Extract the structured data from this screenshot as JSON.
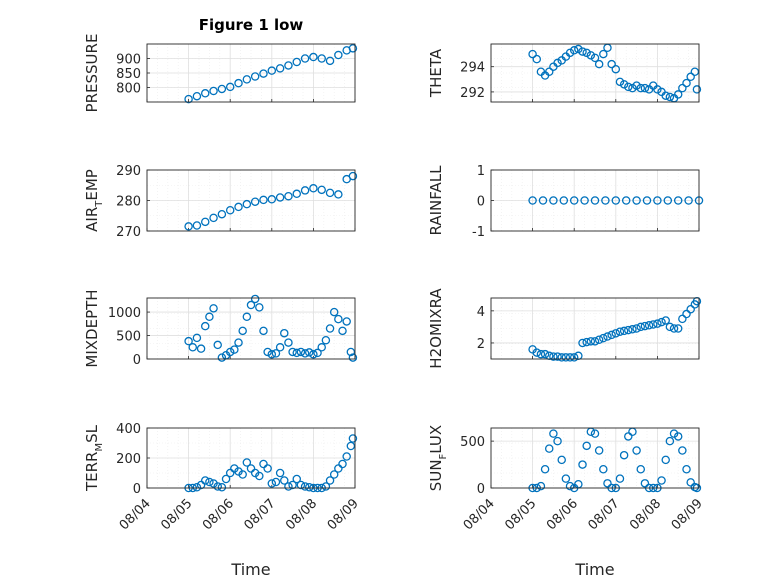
{
  "figure": {
    "title": "Figure 1 low",
    "xlabel": "Time",
    "x_tick_labels": [
      "08/04",
      "08/05",
      "08/06",
      "08/07",
      "08/08",
      "08/09"
    ],
    "colors": {
      "marker": "#0072bd",
      "axis": "#262626",
      "grid": "#dfdfdf",
      "minor_grid": "#ececec"
    }
  },
  "chart_data": [
    {
      "type": "scatter",
      "ylabel": {
        "main": "PRESSURE",
        "sub": ""
      },
      "xlim": [
        0,
        5
      ],
      "ylim": [
        750,
        950
      ],
      "yticks": [
        800,
        850,
        900
      ],
      "grid": true,
      "series": [
        {
          "x": [
            1.0,
            1.2,
            1.4,
            1.6,
            1.8,
            2.0,
            2.2,
            2.4,
            2.6,
            2.8,
            3.0,
            3.2,
            3.4,
            3.6,
            3.8,
            4.0,
            4.2,
            4.4,
            4.6,
            4.8,
            4.95
          ],
          "y": [
            760,
            770,
            780,
            788,
            795,
            802,
            815,
            828,
            838,
            848,
            858,
            866,
            876,
            888,
            900,
            905,
            900,
            892,
            912,
            928,
            935
          ]
        }
      ]
    },
    {
      "type": "scatter",
      "ylabel": {
        "main": "THETA",
        "sub": ""
      },
      "xlim": [
        0,
        5
      ],
      "ylim": [
        291.2,
        295.8
      ],
      "yticks": [
        292,
        294
      ],
      "grid": true,
      "series": [
        {
          "x": [
            1.0,
            1.1,
            1.2,
            1.3,
            1.4,
            1.5,
            1.6,
            1.7,
            1.8,
            1.9,
            2.0,
            2.1,
            2.2,
            2.3,
            2.4,
            2.5,
            2.6,
            2.7,
            2.8,
            2.9,
            3.0,
            3.1,
            3.2,
            3.3,
            3.4,
            3.5,
            3.6,
            3.7,
            3.8,
            3.9,
            4.0,
            4.1,
            4.2,
            4.3,
            4.4,
            4.5,
            4.6,
            4.7,
            4.8,
            4.9,
            4.95
          ],
          "y": [
            295.0,
            294.6,
            293.6,
            293.3,
            293.6,
            294.0,
            294.3,
            294.5,
            294.8,
            295.1,
            295.3,
            295.4,
            295.2,
            295.1,
            294.9,
            294.7,
            294.2,
            295.0,
            295.5,
            294.2,
            293.8,
            292.8,
            292.6,
            292.4,
            292.3,
            292.5,
            292.3,
            292.3,
            292.2,
            292.5,
            292.2,
            292.0,
            291.7,
            291.6,
            291.5,
            291.8,
            292.3,
            292.7,
            293.2,
            293.6,
            292.2
          ]
        }
      ]
    },
    {
      "type": "scatter",
      "ylabel": {
        "main": "AIR",
        "sub": "T",
        "rest": "EMP"
      },
      "xlim": [
        0,
        5
      ],
      "ylim": [
        270,
        290
      ],
      "yticks": [
        270,
        280,
        290
      ],
      "grid": true,
      "series": [
        {
          "x": [
            1.0,
            1.2,
            1.4,
            1.6,
            1.8,
            2.0,
            2.2,
            2.4,
            2.6,
            2.8,
            3.0,
            3.2,
            3.4,
            3.6,
            3.8,
            4.0,
            4.2,
            4.4,
            4.6,
            4.8,
            4.95
          ],
          "y": [
            271.5,
            271.8,
            273.0,
            274.3,
            275.5,
            276.8,
            277.9,
            278.8,
            279.6,
            280.2,
            280.4,
            281.0,
            281.4,
            282.2,
            283.3,
            284.0,
            283.5,
            282.5,
            282.0,
            287.0,
            288.0
          ]
        }
      ]
    },
    {
      "type": "scatter",
      "ylabel": {
        "main": "RAINFALL",
        "sub": ""
      },
      "xlim": [
        0,
        5
      ],
      "ylim": [
        -1,
        1
      ],
      "yticks": [
        -1,
        0,
        1
      ],
      "grid": true,
      "series": [
        {
          "x": [
            1.0,
            1.25,
            1.5,
            1.75,
            2.0,
            2.25,
            2.5,
            2.75,
            3.0,
            3.25,
            3.5,
            3.75,
            4.0,
            4.25,
            4.5,
            4.75,
            5.0
          ],
          "y": [
            0,
            0,
            0,
            0,
            0,
            0,
            0,
            0,
            0,
            0,
            0,
            0,
            0,
            0,
            0,
            0,
            0
          ]
        }
      ]
    },
    {
      "type": "scatter",
      "ylabel": {
        "main": "MIXDEPTH",
        "sub": ""
      },
      "xlim": [
        0,
        5
      ],
      "ylim": [
        0,
        1300
      ],
      "yticks": [
        0,
        500,
        1000
      ],
      "grid": true,
      "series": [
        {
          "x": [
            1.0,
            1.1,
            1.2,
            1.3,
            1.4,
            1.5,
            1.6,
            1.7,
            1.8,
            1.9,
            2.0,
            2.1,
            2.2,
            2.3,
            2.4,
            2.5,
            2.6,
            2.7,
            2.8,
            2.9,
            3.0,
            3.1,
            3.2,
            3.3,
            3.4,
            3.5,
            3.6,
            3.7,
            3.8,
            3.9,
            4.0,
            4.1,
            4.2,
            4.3,
            4.4,
            4.5,
            4.6,
            4.7,
            4.8,
            4.9,
            4.95
          ],
          "y": [
            380,
            250,
            450,
            220,
            700,
            900,
            1080,
            300,
            30,
            80,
            150,
            200,
            350,
            600,
            900,
            1150,
            1280,
            1100,
            600,
            150,
            100,
            120,
            250,
            550,
            350,
            150,
            130,
            150,
            120,
            140,
            100,
            130,
            250,
            400,
            650,
            1000,
            850,
            600,
            800,
            150,
            30
          ]
        }
      ]
    },
    {
      "type": "scatter",
      "ylabel": {
        "main": "H2OMIXRA",
        "sub": ""
      },
      "xlim": [
        0,
        5
      ],
      "ylim": [
        1,
        4.8
      ],
      "yticks": [
        2,
        4
      ],
      "grid": true,
      "series": [
        {
          "x": [
            1.0,
            1.1,
            1.2,
            1.3,
            1.4,
            1.5,
            1.6,
            1.7,
            1.8,
            1.9,
            2.0,
            2.1,
            2.2,
            2.3,
            2.4,
            2.5,
            2.6,
            2.7,
            2.8,
            2.9,
            3.0,
            3.1,
            3.2,
            3.3,
            3.4,
            3.5,
            3.6,
            3.7,
            3.8,
            3.9,
            4.0,
            4.1,
            4.2,
            4.3,
            4.4,
            4.5,
            4.6,
            4.7,
            4.8,
            4.9,
            4.95
          ],
          "y": [
            1.6,
            1.4,
            1.3,
            1.3,
            1.2,
            1.15,
            1.15,
            1.1,
            1.1,
            1.1,
            1.1,
            1.2,
            2.0,
            2.05,
            2.1,
            2.1,
            2.2,
            2.3,
            2.4,
            2.5,
            2.6,
            2.7,
            2.75,
            2.8,
            2.85,
            2.9,
            3.0,
            3.05,
            3.1,
            3.15,
            3.2,
            3.3,
            3.4,
            3.0,
            2.9,
            2.9,
            3.5,
            3.8,
            4.1,
            4.4,
            4.6
          ]
        }
      ]
    },
    {
      "type": "scatter",
      "ylabel": {
        "main": "TERR",
        "sub": "M",
        "rest": "SL"
      },
      "xlim": [
        0,
        5
      ],
      "ylim": [
        0,
        400
      ],
      "yticks": [
        0,
        200,
        400
      ],
      "grid": true,
      "series": [
        {
          "x": [
            1.0,
            1.1,
            1.2,
            1.3,
            1.4,
            1.5,
            1.6,
            1.7,
            1.8,
            1.9,
            2.0,
            2.1,
            2.2,
            2.3,
            2.4,
            2.5,
            2.6,
            2.7,
            2.8,
            2.9,
            3.0,
            3.1,
            3.2,
            3.3,
            3.4,
            3.5,
            3.6,
            3.7,
            3.8,
            3.9,
            4.0,
            4.1,
            4.2,
            4.3,
            4.4,
            4.5,
            4.6,
            4.7,
            4.8,
            4.9,
            4.95
          ],
          "y": [
            0,
            0,
            5,
            20,
            50,
            40,
            30,
            10,
            5,
            60,
            100,
            130,
            110,
            90,
            170,
            130,
            100,
            80,
            160,
            130,
            30,
            40,
            100,
            50,
            10,
            20,
            60,
            20,
            10,
            5,
            0,
            0,
            0,
            10,
            50,
            90,
            130,
            160,
            210,
            280,
            330
          ]
        }
      ]
    },
    {
      "type": "scatter",
      "ylabel": {
        "main": "SUN",
        "sub": "F",
        "rest": "LUX"
      },
      "xlim": [
        0,
        5
      ],
      "ylim": [
        0,
        640
      ],
      "yticks": [
        0,
        500
      ],
      "grid": true,
      "series": [
        {
          "x": [
            1.0,
            1.1,
            1.2,
            1.3,
            1.4,
            1.5,
            1.6,
            1.7,
            1.8,
            1.9,
            2.0,
            2.1,
            2.2,
            2.3,
            2.4,
            2.5,
            2.6,
            2.7,
            2.8,
            2.9,
            3.0,
            3.1,
            3.2,
            3.3,
            3.4,
            3.5,
            3.6,
            3.7,
            3.8,
            3.9,
            4.0,
            4.1,
            4.2,
            4.3,
            4.4,
            4.5,
            4.6,
            4.7,
            4.8,
            4.9,
            4.95
          ],
          "y": [
            0,
            0,
            20,
            200,
            420,
            580,
            500,
            300,
            100,
            20,
            0,
            40,
            250,
            450,
            600,
            580,
            400,
            200,
            50,
            0,
            0,
            100,
            350,
            550,
            600,
            400,
            200,
            50,
            0,
            0,
            0,
            80,
            300,
            500,
            580,
            550,
            400,
            200,
            60,
            10,
            0
          ]
        }
      ]
    }
  ]
}
